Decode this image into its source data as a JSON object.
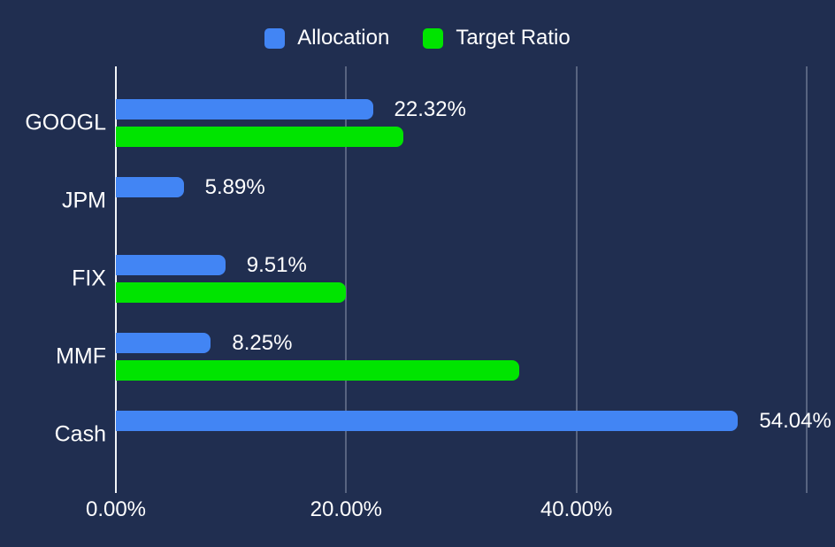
{
  "chart_data": {
    "type": "bar",
    "orientation": "horizontal",
    "title": "",
    "categories": [
      "GOOGL",
      "JPM",
      "FIX",
      "MMF",
      "Cash"
    ],
    "series": [
      {
        "name": "Allocation",
        "color": "#4285f4",
        "values": [
          22.32,
          5.89,
          9.51,
          8.25,
          54.04
        ],
        "value_labels": [
          "22.32%",
          "5.89%",
          "9.51%",
          "8.25%",
          "54.04%"
        ]
      },
      {
        "name": "Target Ratio",
        "color": "#00e400",
        "values": [
          25,
          0,
          20,
          35,
          0
        ],
        "value_labels": [
          "",
          "",
          "",
          "",
          ""
        ]
      }
    ],
    "xlim": [
      0,
      60
    ],
    "x_ticks": [
      {
        "value": 0,
        "label": "0.00%"
      },
      {
        "value": 20,
        "label": "20.00%"
      },
      {
        "value": 40,
        "label": "40.00%"
      },
      {
        "value": 60,
        "label": ""
      }
    ],
    "grid": true,
    "legend_position": "top",
    "background_color": "#202e50",
    "axis_line_color": "#f2f4f8",
    "gridline_color": "#8692a8",
    "text_color": "#ffffff"
  }
}
